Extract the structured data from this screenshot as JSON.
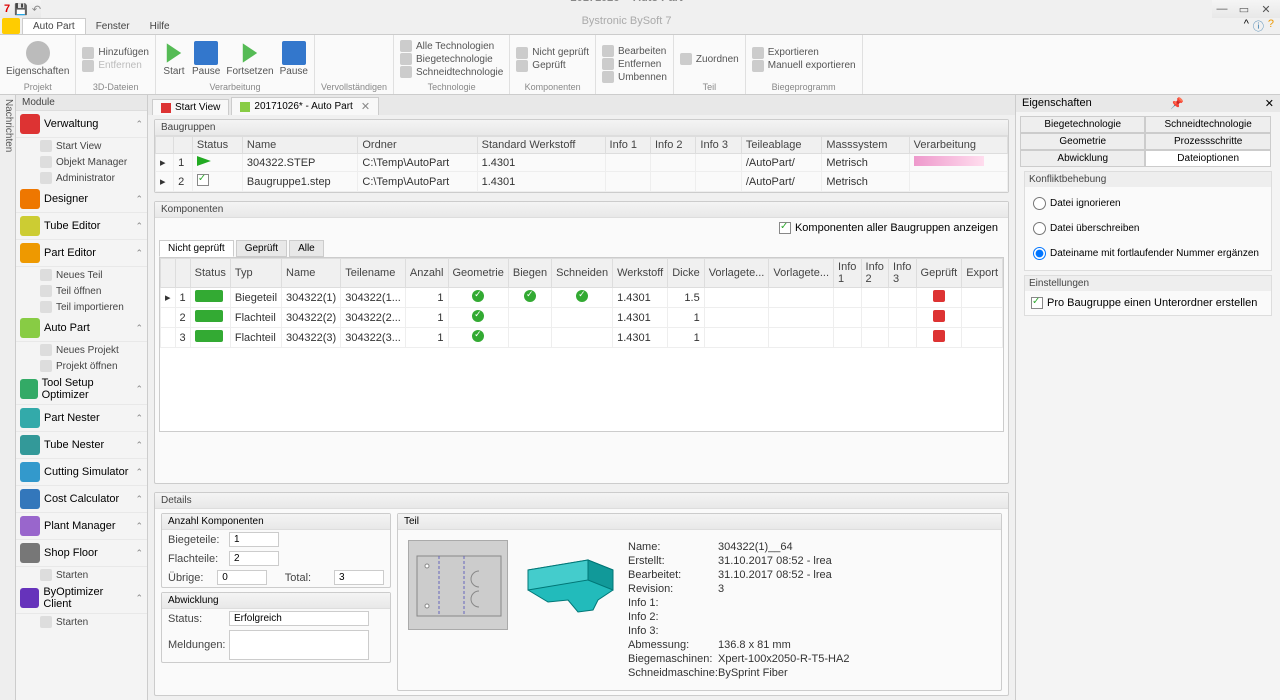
{
  "title": {
    "doc": "20171026* - Auto Part",
    "app": "Bystronic BySoft 7"
  },
  "menubar": {
    "tabs": [
      "Auto Part",
      "Fenster",
      "Hilfe"
    ],
    "active": 0
  },
  "ribbon": {
    "groups": [
      {
        "label": "Projekt",
        "items": [
          {
            "t": "Eigenschaften"
          }
        ]
      },
      {
        "label": "3D-Dateien",
        "items": [
          {
            "t": "Hinzufügen",
            "sm": true
          },
          {
            "t": "Entfernen",
            "sm": true,
            "dim": true
          }
        ]
      },
      {
        "label": "Verarbeitung",
        "items": [
          {
            "t": "Start"
          },
          {
            "t": "Pause"
          },
          {
            "t": "Fortsetzen"
          },
          {
            "t": "Pause"
          }
        ]
      },
      {
        "label": "Vervollständigen",
        "split": true
      },
      {
        "label": "Technologie",
        "items": [
          {
            "t": "Alle Technologien",
            "sm": true
          },
          {
            "t": "Biegetechnologie",
            "sm": true
          },
          {
            "t": "Schneidtechnologie",
            "sm": true
          }
        ]
      },
      {
        "label": "Komponenten",
        "items": [
          {
            "t": "Nicht geprüft",
            "sm": true
          },
          {
            "t": "Geprüft",
            "sm": true
          }
        ]
      },
      {
        "label": "",
        "items": [
          {
            "t": "Bearbeiten",
            "sm": true
          },
          {
            "t": "Entfernen",
            "sm": true
          },
          {
            "t": "Umbennen",
            "sm": true
          }
        ]
      },
      {
        "label": "Teil",
        "items": [
          {
            "t": "Zuordnen",
            "sm": true
          }
        ]
      },
      {
        "label": "Biegeprogramm",
        "items": [
          {
            "t": "Exportieren",
            "sm": true
          },
          {
            "t": "Manuell exportieren",
            "sm": true
          }
        ]
      }
    ]
  },
  "modules": {
    "title": "Module",
    "nachrichten": "Nachrichten",
    "items": [
      {
        "label": "Verwaltung",
        "color": "#d33",
        "subs": [
          "Start View",
          "Objekt Manager",
          "Administrator"
        ],
        "exp": true
      },
      {
        "label": "Designer",
        "color": "#e70",
        "exp": true
      },
      {
        "label": "Tube Editor",
        "color": "#cc3",
        "exp": true
      },
      {
        "label": "Part Editor",
        "color": "#e90",
        "subs": [
          "Neues Teil",
          "Teil öffnen",
          "Teil importieren"
        ],
        "exp": true
      },
      {
        "label": "Auto Part",
        "color": "#8c4",
        "subs": [
          "Neues Projekt",
          "Projekt öffnen"
        ],
        "exp": true
      },
      {
        "label": "Tool Setup Optimizer",
        "color": "#3a6",
        "exp": true
      },
      {
        "label": "Part Nester",
        "color": "#3aa",
        "exp": true
      },
      {
        "label": "Tube Nester",
        "color": "#399",
        "exp": true
      },
      {
        "label": "Cutting Simulator",
        "color": "#39c",
        "exp": true
      },
      {
        "label": "Cost Calculator",
        "color": "#37b",
        "exp": true
      },
      {
        "label": "Plant Manager",
        "color": "#96c",
        "exp": true
      },
      {
        "label": "Shop Floor",
        "color": "#777",
        "subs": [
          "Starten"
        ],
        "exp": true
      },
      {
        "label": "ByOptimizer Client",
        "color": "#63b",
        "subs": [
          "Starten"
        ],
        "exp": true
      }
    ]
  },
  "docTabs": [
    {
      "label": "Start View",
      "color": "#d33"
    },
    {
      "label": "20171026* - Auto Part",
      "color": "#8c4",
      "closable": true
    }
  ],
  "baugruppen": {
    "title": "Baugruppen",
    "cols": [
      "",
      "",
      "Status",
      "Name",
      "Ordner",
      "Standard Werkstoff",
      "Info 1",
      "Info 2",
      "Info 3",
      "Teileablage",
      "Masssystem",
      "Verarbeitung"
    ],
    "rows": [
      {
        "n": "1",
        "status": "play",
        "name": "304322.STEP",
        "ordner": "C:\\Temp\\AutoPart",
        "werk": "1.4301",
        "ablage": "/AutoPart/",
        "mass": "Metrisch",
        "proc": true
      },
      {
        "n": "2",
        "status": "chk",
        "name": "Baugruppe1.step",
        "ordner": "C:\\Temp\\AutoPart",
        "werk": "1.4301",
        "ablage": "/AutoPart/",
        "mass": "Metrisch"
      }
    ]
  },
  "komponenten": {
    "title": "Komponenten",
    "showAll": "Komponenten aller Baugruppen anzeigen",
    "tabs": [
      "Nicht geprüft",
      "Geprüft",
      "Alle"
    ],
    "cols": [
      "",
      "",
      "Status",
      "Typ",
      "Name",
      "Teilename",
      "Anzahl",
      "Geometrie",
      "Biegen",
      "Schneiden",
      "Werkstoff",
      "Dicke",
      "Vorlagete...",
      "Vorlagete...",
      "Info 1",
      "Info 2",
      "Info 3",
      "Geprüft",
      "Export"
    ],
    "rows": [
      {
        "n": "1",
        "typ": "Biegeteil",
        "name": "304322(1)",
        "teil": "304322(1...",
        "anz": "1",
        "geo": true,
        "bie": true,
        "sch": true,
        "werk": "1.4301",
        "dicke": "1.5",
        "gepr": "r"
      },
      {
        "n": "2",
        "typ": "Flachteil",
        "name": "304322(2)",
        "teil": "304322(2...",
        "anz": "1",
        "geo": true,
        "werk": "1.4301",
        "dicke": "1",
        "gepr": "r"
      },
      {
        "n": "3",
        "typ": "Flachteil",
        "name": "304322(3)",
        "teil": "304322(3...",
        "anz": "1",
        "geo": true,
        "werk": "1.4301",
        "dicke": "1",
        "gepr": "r"
      }
    ]
  },
  "details": {
    "title": "Details",
    "anzahl": {
      "title": "Anzahl Komponenten",
      "biege": "Biegeteile:",
      "biegeV": "1",
      "flach": "Flachteile:",
      "flachV": "2",
      "ubrige": "Übrige:",
      "ubrigeV": "0",
      "total": "Total:",
      "totalV": "3"
    },
    "abw": {
      "title": "Abwicklung",
      "status": "Status:",
      "statusV": "Erfolgreich",
      "meld": "Meldungen:"
    },
    "teil": {
      "title": "Teil",
      "info": [
        [
          "Name:",
          "304322(1)__64"
        ],
        [
          "Erstellt:",
          "31.10.2017 08:52 - lrea"
        ],
        [
          "Bearbeitet:",
          "31.10.2017 08:52 - lrea"
        ],
        [
          "Revision:",
          "3"
        ],
        [
          "Info 1:",
          ""
        ],
        [
          "Info 2:",
          ""
        ],
        [
          "Info 3:",
          ""
        ],
        [
          "Abmessung:",
          "136.8 x 81 mm"
        ],
        [
          "Biegemaschinen:",
          "Xpert-100x2050-R-T5-HA2"
        ],
        [
          "Schneidmaschine:",
          "BySprint Fiber"
        ]
      ]
    }
  },
  "props": {
    "title": "Eigenschaften",
    "tabs": [
      "Biegetechnologie",
      "Schneidtechnologie",
      "Geometrie",
      "Prozessschritte",
      "Abwicklung",
      "Dateioptionen"
    ],
    "active": 5,
    "konflikt": {
      "title": "Konfliktbehebung",
      "opts": [
        "Datei ignorieren",
        "Datei überschreiben",
        "Dateiname mit fortlaufender Nummer ergänzen"
      ],
      "sel": 2
    },
    "einst": {
      "title": "Einstellungen",
      "chk": "Pro Baugruppe einen Unterordner erstellen",
      "on": true
    }
  }
}
